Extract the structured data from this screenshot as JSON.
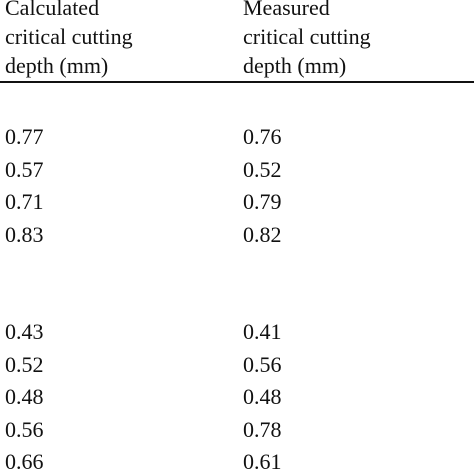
{
  "table": {
    "headers": [
      [
        "Calculated",
        "critical cutting",
        "depth (mm)"
      ],
      [
        "Measured",
        "critical cutting",
        "depth (mm)"
      ]
    ],
    "groups": [
      [
        [
          "0.77",
          "0.76"
        ],
        [
          "0.57",
          "0.52"
        ],
        [
          "0.71",
          "0.79"
        ],
        [
          "0.83",
          "0.82"
        ]
      ],
      [
        [
          "0.43",
          "0.41"
        ],
        [
          "0.52",
          "0.56"
        ],
        [
          "0.48",
          "0.48"
        ],
        [
          "0.56",
          "0.78"
        ],
        [
          "0.66",
          "0.61"
        ]
      ]
    ]
  }
}
